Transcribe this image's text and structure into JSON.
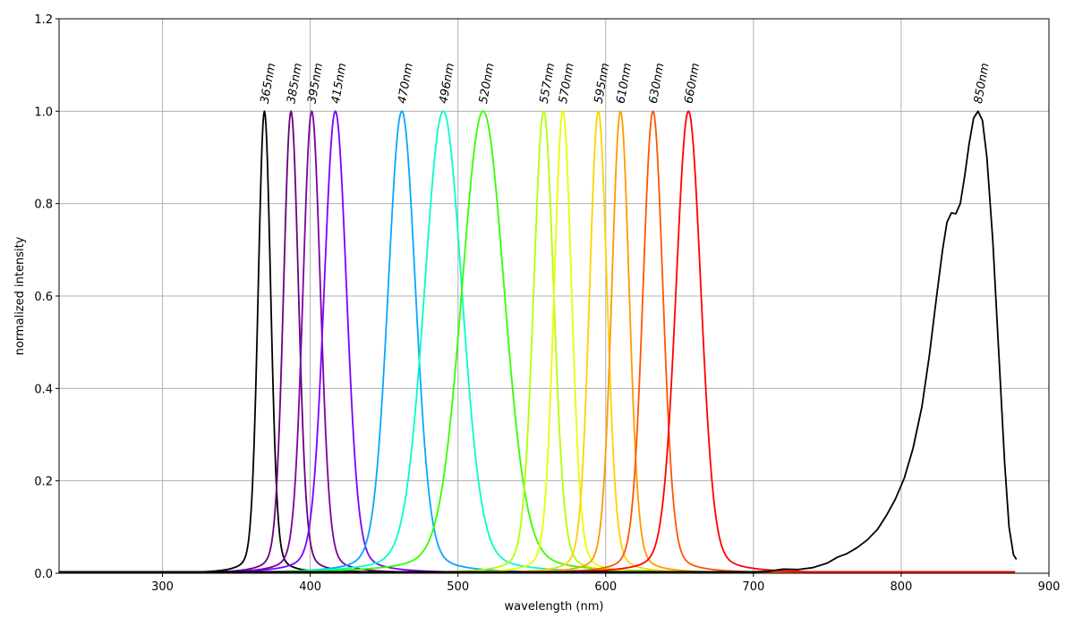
{
  "chart_data": {
    "type": "line",
    "title": "",
    "xlabel": "wavelength (nm)",
    "ylabel": "normalized intensity",
    "xlim": [
      230,
      900
    ],
    "ylim": [
      0.0,
      1.2
    ],
    "xticks": [
      300,
      400,
      500,
      600,
      700,
      800,
      900
    ],
    "xtick_labels": [
      "300",
      "400",
      "500",
      "600",
      "700",
      "800",
      "900"
    ],
    "yticks": [
      0.0,
      0.2,
      0.4,
      0.6,
      0.8,
      1.0,
      1.2
    ],
    "ytick_labels": [
      "0.0",
      "0.2",
      "0.4",
      "0.6",
      "0.8",
      "1.0",
      "1.2"
    ],
    "grid": true,
    "legend": "none",
    "series": [
      {
        "label": "365nm",
        "color": "#000000",
        "peak": 369,
        "fwhm": 10,
        "label_x": 369
      },
      {
        "label": "385nm",
        "color": "#6a0080",
        "peak": 387,
        "fwhm": 12,
        "label_x": 387
      },
      {
        "label": "395nm",
        "color": "#7d00a0",
        "peak": 401,
        "fwhm": 14,
        "label_x": 401
      },
      {
        "label": "415nm",
        "color": "#7b00ff",
        "peak": 417,
        "fwhm": 18,
        "label_x": 417
      },
      {
        "label": "470nm",
        "color": "#0aa5ff",
        "peak": 462,
        "fwhm": 22,
        "label_x": 462
      },
      {
        "label": "496nm",
        "color": "#00ffc8",
        "peak": 490,
        "fwhm": 30,
        "label_x": 490
      },
      {
        "label": "520nm",
        "color": "#33ff00",
        "peak": 517,
        "fwhm": 34,
        "label_x": 517
      },
      {
        "label": "557nm",
        "color": "#b4ff00",
        "peak": 558,
        "fwhm": 16,
        "label_x": 558
      },
      {
        "label": "570nm",
        "color": "#e8ff00",
        "peak": 571,
        "fwhm": 14,
        "label_x": 571
      },
      {
        "label": "595nm",
        "color": "#ffd200",
        "peak": 595,
        "fwhm": 14,
        "label_x": 595
      },
      {
        "label": "610nm",
        "color": "#ff9a00",
        "peak": 610,
        "fwhm": 14,
        "label_x": 610
      },
      {
        "label": "630nm",
        "color": "#ff5500",
        "peak": 632,
        "fwhm": 16,
        "label_x": 632
      },
      {
        "label": "660nm",
        "color": "#ff0000",
        "peak": 656,
        "fwhm": 20,
        "label_x": 656
      },
      {
        "label": "850nm",
        "color": "#000000",
        "peak": 852,
        "fwhm": 36,
        "label_x": 852,
        "points": [
          [
            700,
            0.003
          ],
          [
            710,
            0.004
          ],
          [
            720,
            0.009
          ],
          [
            730,
            0.008
          ],
          [
            740,
            0.012
          ],
          [
            750,
            0.022
          ],
          [
            757,
            0.035
          ],
          [
            763,
            0.042
          ],
          [
            770,
            0.055
          ],
          [
            777,
            0.072
          ],
          [
            784,
            0.095
          ],
          [
            790,
            0.125
          ],
          [
            796,
            0.16
          ],
          [
            802,
            0.205
          ],
          [
            808,
            0.27
          ],
          [
            814,
            0.36
          ],
          [
            819,
            0.47
          ],
          [
            824,
            0.6
          ],
          [
            828,
            0.7
          ],
          [
            831,
            0.76
          ],
          [
            834,
            0.78
          ],
          [
            837,
            0.778
          ],
          [
            840,
            0.8
          ],
          [
            843,
            0.86
          ],
          [
            846,
            0.93
          ],
          [
            849,
            0.985
          ],
          [
            852,
            1.0
          ],
          [
            855,
            0.98
          ],
          [
            858,
            0.9
          ],
          [
            862,
            0.72
          ],
          [
            866,
            0.48
          ],
          [
            870,
            0.24
          ],
          [
            873,
            0.1
          ],
          [
            876,
            0.04
          ],
          [
            878,
            0.03
          ]
        ]
      }
    ]
  }
}
